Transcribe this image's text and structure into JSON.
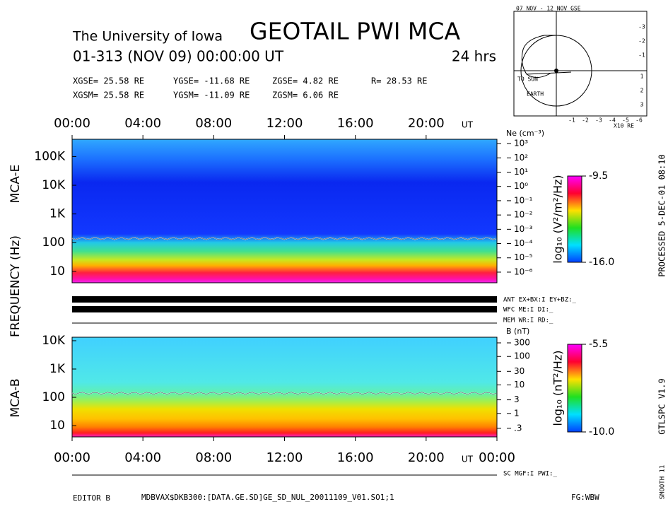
{
  "header": {
    "institution": "The University of Iowa",
    "title": "GEOTAIL PWI MCA",
    "date": "01-313 (NOV 09) 00:00:00 UT",
    "duration": "24 hrs",
    "position": [
      [
        "XGSE= 25.58 RE",
        "YGSE= -11.68 RE",
        "ZGSE= 4.82 RE",
        "R= 28.53 RE"
      ],
      [
        "XGSM= 25.58 RE",
        "YGSM= -11.09 RE",
        "ZGSM= 6.06 RE"
      ]
    ]
  },
  "orbit": {
    "title": "07 NOV - 12 NOV GSE",
    "sun": "TO SUN",
    "earth": "EARTH",
    "x_unit": "X10 RE",
    "xticks": [
      "-1",
      "-2",
      "-3",
      "-4",
      "-5",
      "-6"
    ],
    "yticks": [
      "-3",
      "-2",
      "-1",
      "1",
      "2",
      "3"
    ]
  },
  "y_label": "FREQUENCY (Hz)",
  "chart_data": [
    {
      "type": "spectrogram",
      "name": "MCA-E",
      "x_unit": "UT",
      "xlim": [
        0,
        24
      ],
      "xticks": [
        {
          "value": 0,
          "label": "00:00"
        },
        {
          "value": 4,
          "label": "04:00"
        },
        {
          "value": 8,
          "label": "08:00"
        },
        {
          "value": 12,
          "label": "12:00"
        },
        {
          "value": 16,
          "label": "16:00"
        },
        {
          "value": 20,
          "label": "20:00"
        }
      ],
      "ylim": [
        4,
        400000
      ],
      "log_y": true,
      "yticks": [
        {
          "value": 100000,
          "label": "100K"
        },
        {
          "value": 10000,
          "label": "10K"
        },
        {
          "value": 1000,
          "label": "1K"
        },
        100,
        10
      ],
      "y2_label": "Ne (cm⁻³)",
      "y2lim": [
        1.8e-07,
        2000
      ],
      "y2ticks": [
        {
          "value": 1000,
          "label": "10³"
        },
        {
          "value": 100,
          "label": "10²"
        },
        {
          "value": 10,
          "label": "10¹"
        },
        {
          "value": 1,
          "label": "10⁰"
        },
        {
          "value": 0.1,
          "label": "10⁻¹"
        },
        {
          "value": 0.01,
          "label": "10⁻²"
        },
        {
          "value": 0.001,
          "label": "10⁻³"
        },
        {
          "value": 0.0001,
          "label": "10⁻⁴"
        },
        {
          "value": 1e-05,
          "label": "10⁻⁵"
        },
        {
          "value": 1e-06,
          "label": "10⁻⁶"
        }
      ],
      "colorbar": {
        "label": "log₁₀ (V²/m²/Hz)",
        "lim": [
          -16,
          -9.5
        ],
        "ticks": [
          -9.5,
          {
            "value": -16,
            "label": "-16.0"
          }
        ]
      }
    },
    {
      "type": "spectrogram",
      "name": "MCA-B",
      "x_unit": "UT",
      "xlim": [
        0,
        24
      ],
      "xticks": [
        {
          "value": 0,
          "label": "00:00"
        },
        {
          "value": 4,
          "label": "04:00"
        },
        {
          "value": 8,
          "label": "08:00"
        },
        {
          "value": 12,
          "label": "12:00"
        },
        {
          "value": 16,
          "label": "16:00"
        },
        {
          "value": 20,
          "label": "20:00"
        },
        {
          "value": 24,
          "label": "00:00"
        }
      ],
      "ylim": [
        4,
        13300
      ],
      "log_y": true,
      "yticks": [
        {
          "value": 10000,
          "label": "10K"
        },
        {
          "value": 1000,
          "label": "1K"
        },
        100,
        10
      ],
      "y2_label": "B (nT)",
      "y2lim": [
        0.15,
        474
      ],
      "y2ticks": [
        300,
        100,
        30,
        10,
        3,
        1,
        {
          "value": 0.3,
          "label": ".3"
        }
      ],
      "colorbar": {
        "label": "log₁₀ (nT²/Hz)",
        "lim": [
          -10,
          -5.5
        ],
        "ticks": [
          -5.5,
          {
            "value": -10,
            "label": "-10.0"
          }
        ]
      }
    }
  ],
  "status": [
    "ANT EX+BX:I EY+BZ:_",
    "WFC ME:I DI:_",
    "MEM WR:I RD:_",
    "SC MGF:I PWI:_"
  ],
  "side": {
    "processed": "PROCESSED 5-DEC-01 08:10",
    "version": "GTLSPC V1.9",
    "smooth": "SMOOTH 11"
  },
  "footer": {
    "editor": "EDITOR B",
    "file": "MDBVAX$DKB300:[DATA.GE.SD]GE_SD_NUL_20011109_V01.SO1;1",
    "fg": "FG:WBW"
  }
}
